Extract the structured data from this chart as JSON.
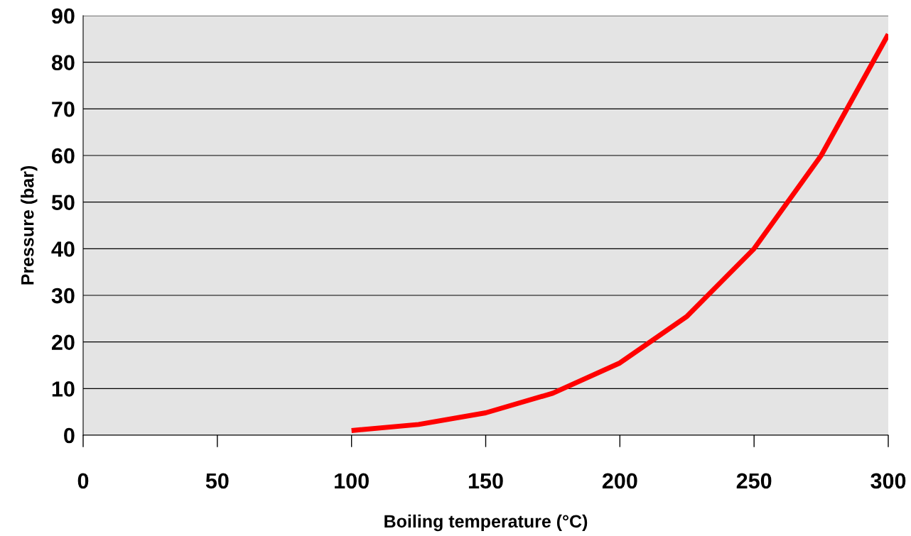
{
  "chart_data": {
    "type": "line",
    "xlabel": "Boiling temperature (°C)",
    "ylabel": "Pressure (bar)",
    "x": [
      100,
      125,
      150,
      175,
      200,
      225,
      250,
      275,
      300
    ],
    "series": [
      {
        "color": "#ff0000",
        "values": [
          1.0,
          2.3,
          4.8,
          9.0,
          15.5,
          25.5,
          40,
          60,
          86
        ]
      }
    ],
    "xlim": [
      0,
      300
    ],
    "xticks": [
      0,
      50,
      100,
      150,
      200,
      250,
      300
    ],
    "ylim": [
      0,
      90
    ],
    "yticks": [
      0,
      10,
      20,
      30,
      40,
      50,
      60,
      70,
      80,
      90
    ],
    "grid": "y",
    "marker": "none",
    "line_style": "solid"
  }
}
